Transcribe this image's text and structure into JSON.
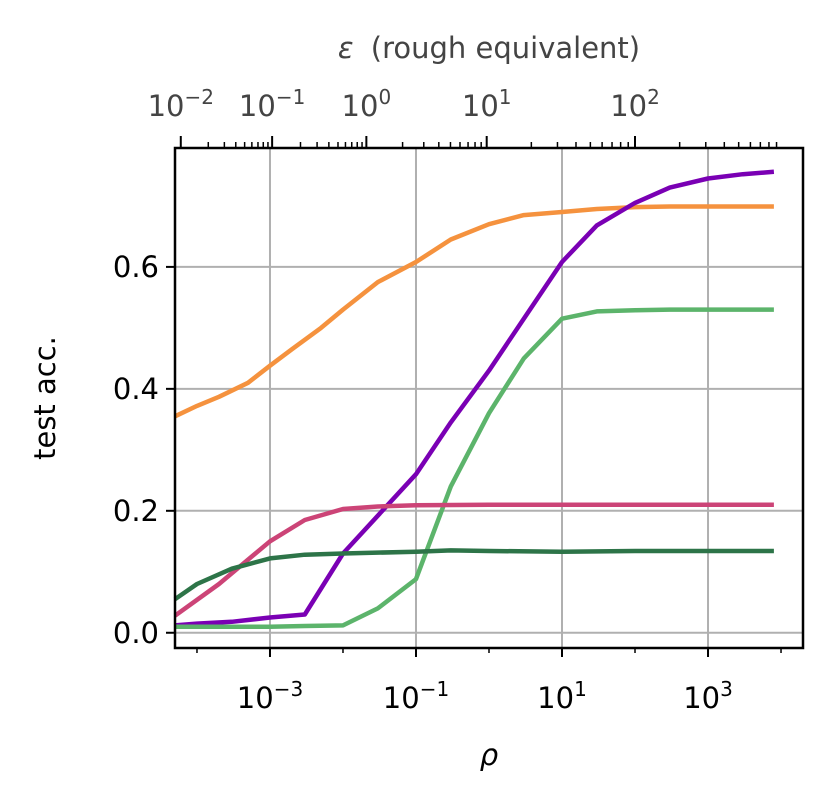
{
  "chart_data": {
    "type": "line",
    "xlabel": "ρ",
    "ylabel": "test acc.",
    "top_xlabel_symbol": "ε",
    "top_xlabel_text": "(rough equivalent)",
    "x_scale": "log",
    "xlim": [
      5e-05,
      20000
    ],
    "ylim": [
      -0.025,
      0.795
    ],
    "grid": true,
    "legend": "none",
    "x_ticks": [
      {
        "value": 0.001,
        "base": "10",
        "exp": "−3"
      },
      {
        "value": 0.1,
        "base": "10",
        "exp": "−1"
      },
      {
        "value": 10,
        "base": "10",
        "exp": "1"
      },
      {
        "value": 1000,
        "base": "10",
        "exp": "3"
      }
    ],
    "y_ticks": [
      {
        "value": 0.0,
        "label": "0.0"
      },
      {
        "value": 0.2,
        "label": "0.2"
      },
      {
        "value": 0.4,
        "label": "0.4"
      },
      {
        "value": 0.6,
        "label": "0.6"
      }
    ],
    "top_ticks": [
      {
        "rho": 6e-05,
        "base": "10",
        "exp": "−2"
      },
      {
        "rho": 0.00107,
        "base": "10",
        "exp": "−1"
      },
      {
        "rho": 0.0209,
        "base": "10",
        "exp": "0"
      },
      {
        "rho": 0.93,
        "base": "10",
        "exp": "1"
      },
      {
        "rho": 100,
        "base": "10",
        "exp": "2"
      }
    ],
    "series": [
      {
        "color": "#f5923e",
        "x": [
          5e-05,
          0.0001,
          0.0002,
          0.0005,
          0.001,
          0.002,
          0.005,
          0.01,
          0.03,
          0.1,
          0.3,
          1,
          3,
          10,
          30,
          100,
          300,
          1000,
          3000,
          8000
        ],
        "y": [
          0.355,
          0.372,
          0.387,
          0.41,
          0.438,
          0.465,
          0.5,
          0.53,
          0.575,
          0.608,
          0.645,
          0.67,
          0.685,
          0.69,
          0.695,
          0.698,
          0.699,
          0.699,
          0.699,
          0.699
        ]
      },
      {
        "color": "#7a00b4",
        "x": [
          5e-05,
          0.0001,
          0.0003,
          0.001,
          0.003,
          0.01,
          0.1,
          0.3,
          1,
          3,
          10,
          30,
          100,
          300,
          1000,
          3000,
          8000
        ],
        "y": [
          0.012,
          0.015,
          0.018,
          0.025,
          0.03,
          0.13,
          0.26,
          0.345,
          0.43,
          0.515,
          0.608,
          0.668,
          0.705,
          0.73,
          0.745,
          0.752,
          0.756
        ]
      },
      {
        "color": "#5cb46b",
        "x": [
          5e-05,
          0.0001,
          0.001,
          0.003,
          0.01,
          0.03,
          0.1,
          0.3,
          1,
          3,
          10,
          30,
          100,
          300,
          1000,
          3000,
          8000
        ],
        "y": [
          0.01,
          0.01,
          0.01,
          0.011,
          0.012,
          0.04,
          0.088,
          0.24,
          0.36,
          0.45,
          0.515,
          0.527,
          0.529,
          0.53,
          0.53,
          0.53,
          0.53
        ]
      },
      {
        "color": "#cc4477",
        "x": [
          5e-05,
          0.0002,
          0.001,
          0.003,
          0.01,
          0.03,
          0.1,
          1,
          10,
          100,
          1000,
          8000
        ],
        "y": [
          0.028,
          0.08,
          0.15,
          0.185,
          0.203,
          0.207,
          0.209,
          0.21,
          0.21,
          0.21,
          0.21,
          0.21
        ]
      },
      {
        "color": "#2d7448",
        "x": [
          5e-05,
          0.0001,
          0.0003,
          0.001,
          0.003,
          0.01,
          0.1,
          0.3,
          1,
          10,
          100,
          1000,
          8000
        ],
        "y": [
          0.055,
          0.08,
          0.105,
          0.122,
          0.128,
          0.13,
          0.133,
          0.135,
          0.134,
          0.133,
          0.134,
          0.134,
          0.134
        ]
      }
    ]
  }
}
